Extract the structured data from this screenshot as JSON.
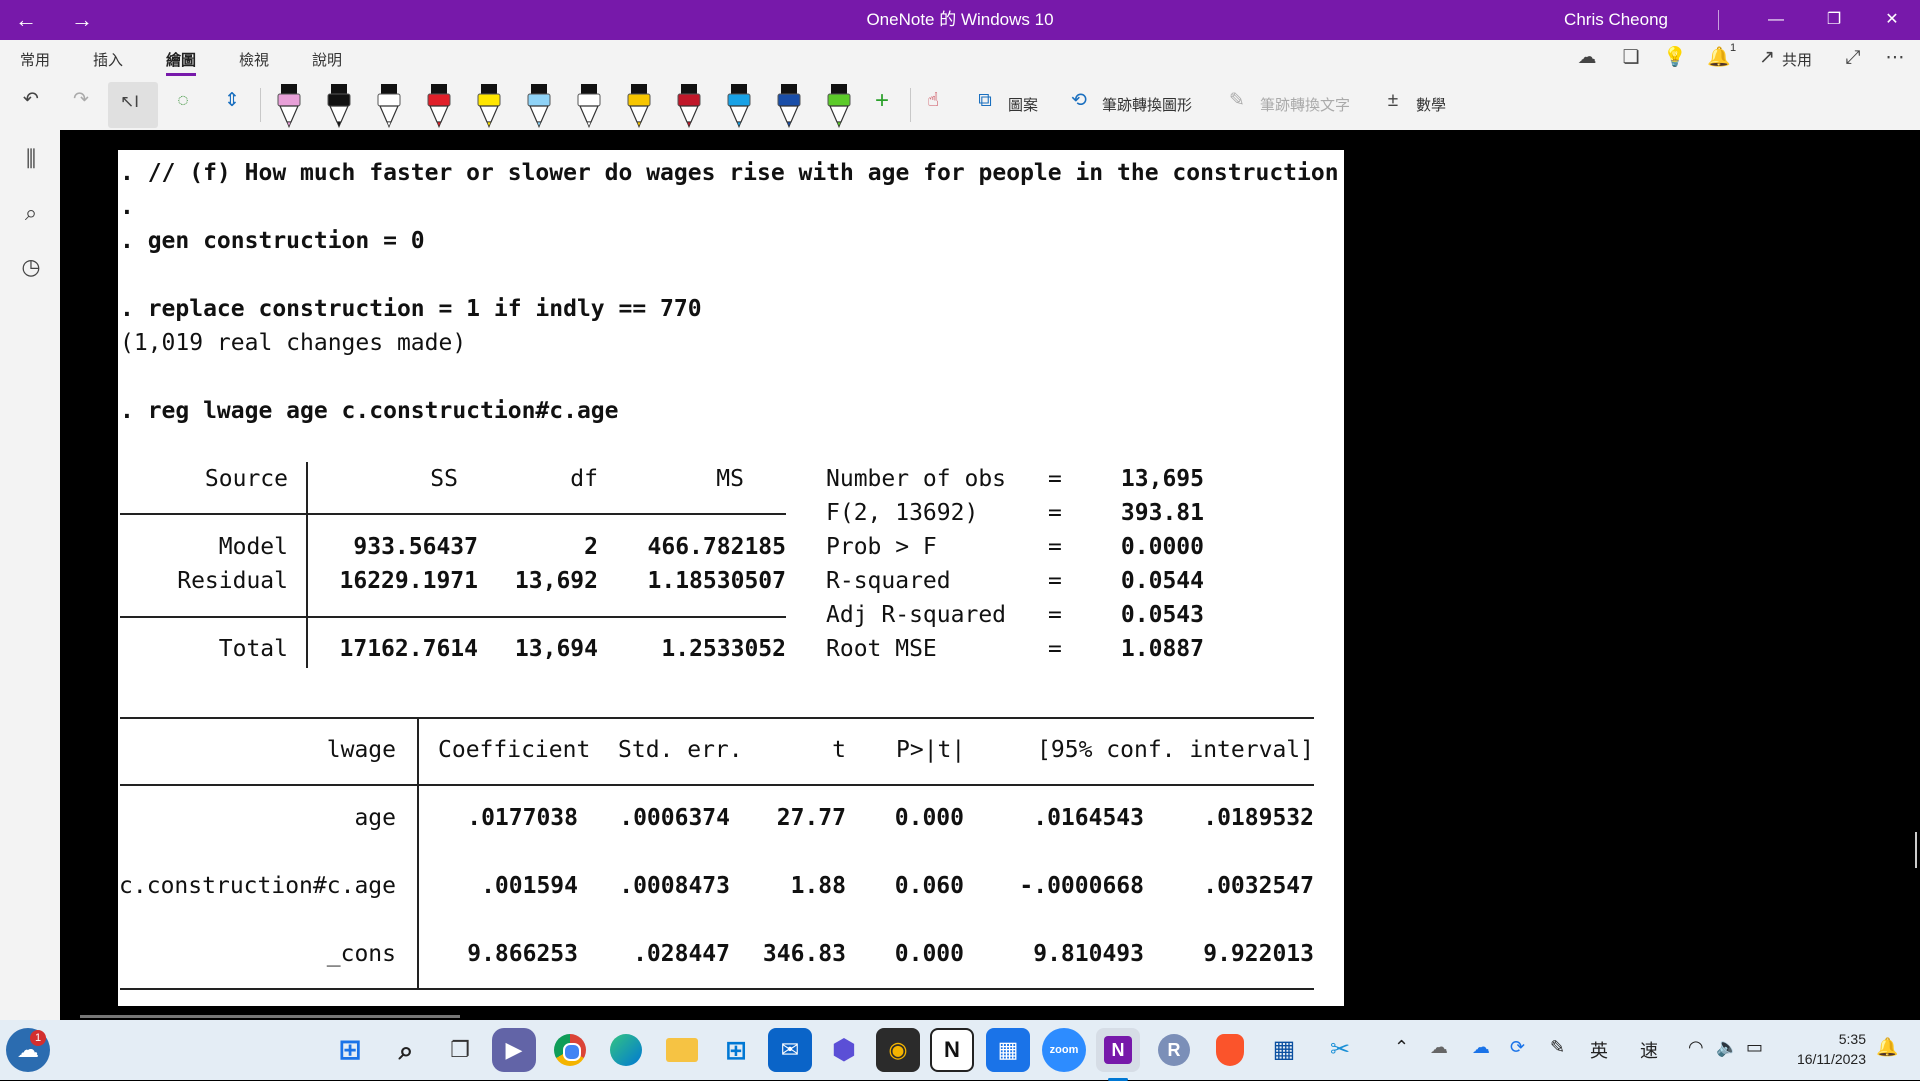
{
  "window": {
    "title": "OneNote 的 Windows 10",
    "user": "Chris Cheong"
  },
  "ribbon": {
    "tabs": [
      "常用",
      "插入",
      "繪圖",
      "檢視",
      "說明"
    ],
    "share_label": "共用",
    "notification_count": "1",
    "shapes_label": "圖案",
    "ink_to_shape_label": "筆跡轉換圖形",
    "ink_to_text_label": "筆跡轉換文字",
    "math_label": "數學",
    "pen_colors": [
      "#e8a0d8",
      "#111111",
      "#ffffff",
      "#e0202a",
      "#ffe600",
      "#8fd3f7",
      "#ffffff",
      "#f7c600",
      "#c0182a",
      "#19a2e6",
      "#1a4ea8",
      "#5ccb2a"
    ]
  },
  "stata": {
    "lines": [
      {
        "text": ". // (f) How much faster or slower do wages rise with age for people in the construction",
        "bold": true
      },
      {
        "text": ".",
        "bold": true
      },
      {
        "text": ". gen construction = 0",
        "bold": true
      },
      {
        "text": ". replace construction = 1 if indly == 770",
        "bold": true
      },
      {
        "text": "(1,019 real changes made)",
        "bold": false
      },
      {
        "text": ". reg lwage age c.construction#c.age",
        "bold": true
      }
    ],
    "anova": {
      "headers": [
        "Source",
        "SS",
        "df",
        "MS"
      ],
      "rows": [
        [
          "Model",
          "933.56437",
          "2",
          "466.782185"
        ],
        [
          "Residual",
          "16229.1971",
          "13,692",
          "1.18530507"
        ],
        [
          "Total",
          "17162.7614",
          "13,694",
          "1.2533052"
        ]
      ]
    },
    "stats": [
      [
        "Number of obs",
        "=",
        "13,695"
      ],
      [
        "F(2, 13692)",
        "=",
        "393.81"
      ],
      [
        "Prob > F",
        "=",
        "0.0000"
      ],
      [
        "R-squared",
        "=",
        "0.0544"
      ],
      [
        "Adj R-squared",
        "=",
        "0.0543"
      ],
      [
        "Root MSE",
        "=",
        "1.0887"
      ]
    ],
    "coef": {
      "headers": [
        "lwage",
        "Coefficient",
        "Std. err.",
        "t",
        "P>|t|",
        "[95% conf. interval]"
      ],
      "rows": [
        [
          "age",
          ".0177038",
          ".0006374",
          "27.77",
          "0.000",
          ".0164543",
          ".0189532"
        ],
        [
          "c.construction#c.age",
          ".001594",
          ".0008473",
          "1.88",
          "0.060",
          "-.0000668",
          ".0032547"
        ],
        [
          "_cons",
          "9.866253",
          ".028447",
          "346.83",
          "0.000",
          "9.810493",
          "9.922013"
        ]
      ]
    }
  },
  "taskbar": {
    "weather_badge": "1",
    "r_label": "R",
    "zoom_label": "zoom",
    "notion_label": "N",
    "ime_label": "英",
    "ime_mode": "速",
    "time": "5:35",
    "date": "16/11/2023"
  }
}
